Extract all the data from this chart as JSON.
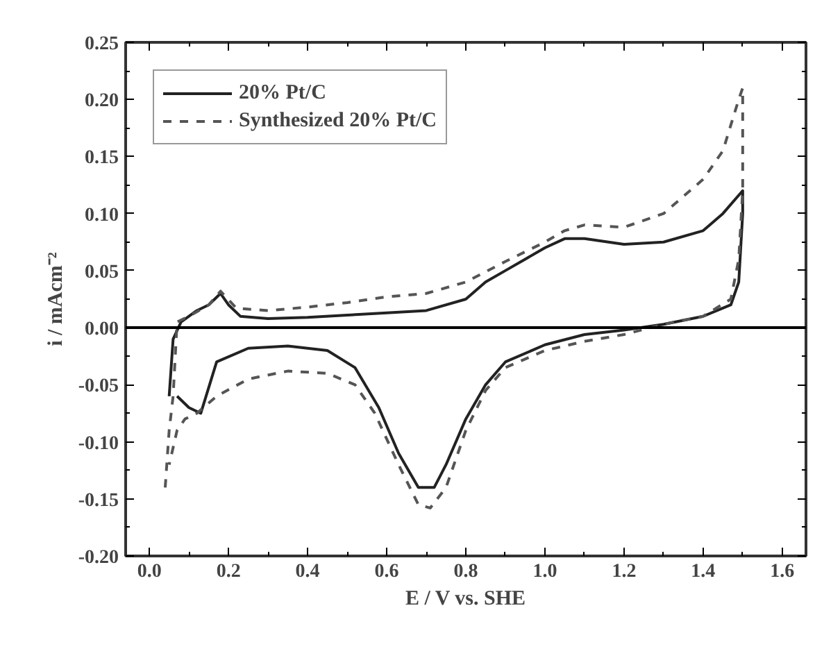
{
  "chart_data": {
    "type": "line",
    "xlabel": "E / V vs. SHE",
    "ylabel": "i / mAcm⁻²",
    "xlim": [
      -0.06,
      1.66
    ],
    "ylim": [
      -0.2,
      0.25
    ],
    "xticks": [
      {
        "value": 0,
        "label": "0.0"
      },
      {
        "value": 0.2,
        "label": "0.2"
      },
      {
        "value": 0.4,
        "label": "0.4"
      },
      {
        "value": 0.6,
        "label": "0.6"
      },
      {
        "value": 0.8,
        "label": "0.8"
      },
      {
        "value": 1.0,
        "label": "1.0"
      },
      {
        "value": 1.2,
        "label": "1.2"
      },
      {
        "value": 1.4,
        "label": "1.4"
      },
      {
        "value": 1.6,
        "label": "1.6"
      }
    ],
    "yticks": [
      {
        "value": -0.2,
        "label": "-0.20"
      },
      {
        "value": -0.15,
        "label": "-0.15"
      },
      {
        "value": -0.1,
        "label": "-0.10"
      },
      {
        "value": -0.05,
        "label": "-0.05"
      },
      {
        "value": 0,
        "label": "0.00"
      },
      {
        "value": 0.05,
        "label": "0.05"
      },
      {
        "value": 0.1,
        "label": "0.10"
      },
      {
        "value": 0.15,
        "label": "0.15"
      },
      {
        "value": 0.2,
        "label": "0.20"
      },
      {
        "value": 0.25,
        "label": "0.25"
      }
    ],
    "grid": false,
    "legend": "top left",
    "marker": "none",
    "ref_lines": [
      {
        "axis": "y",
        "value": 0,
        "color": "#000000",
        "line_style": "solid"
      }
    ],
    "series": [
      {
        "name": "20% Pt/C",
        "color": "#222222",
        "line_style": "solid",
        "x": [
          0.05,
          0.06,
          0.08,
          0.12,
          0.15,
          0.18,
          0.2,
          0.23,
          0.3,
          0.4,
          0.5,
          0.6,
          0.7,
          0.8,
          0.85,
          0.9,
          0.95,
          1.0,
          1.05,
          1.1,
          1.2,
          1.3,
          1.4,
          1.45,
          1.5,
          1.5,
          1.49,
          1.47,
          1.4,
          1.3,
          1.2,
          1.1,
          1.0,
          0.9,
          0.85,
          0.8,
          0.75,
          0.72,
          0.68,
          0.63,
          0.58,
          0.52,
          0.45,
          0.35,
          0.25,
          0.17,
          0.13,
          0.1,
          0.07
        ],
        "values": [
          -0.06,
          -0.01,
          0.005,
          0.015,
          0.02,
          0.03,
          0.02,
          0.01,
          0.008,
          0.009,
          0.011,
          0.013,
          0.015,
          0.025,
          0.04,
          0.05,
          0.06,
          0.07,
          0.078,
          0.078,
          0.073,
          0.075,
          0.085,
          0.1,
          0.12,
          0.1,
          0.04,
          0.02,
          0.01,
          0.003,
          -0.002,
          -0.006,
          -0.015,
          -0.03,
          -0.05,
          -0.08,
          -0.12,
          -0.14,
          -0.14,
          -0.11,
          -0.07,
          -0.035,
          -0.02,
          -0.016,
          -0.018,
          -0.03,
          -0.075,
          -0.07,
          -0.06
        ]
      },
      {
        "name": "Synthesized 20% Pt/C",
        "color": "#555555",
        "line_style": "dashed",
        "x": [
          0.04,
          0.05,
          0.06,
          0.07,
          0.1,
          0.15,
          0.18,
          0.22,
          0.3,
          0.4,
          0.5,
          0.6,
          0.7,
          0.8,
          0.9,
          1.0,
          1.05,
          1.1,
          1.2,
          1.3,
          1.4,
          1.45,
          1.49,
          1.5,
          1.5,
          1.49,
          1.47,
          1.4,
          1.3,
          1.2,
          1.1,
          1.0,
          0.9,
          0.85,
          0.8,
          0.75,
          0.71,
          0.68,
          0.63,
          0.57,
          0.52,
          0.45,
          0.35,
          0.25,
          0.17,
          0.12,
          0.09,
          0.07,
          0.05
        ],
        "values": [
          -0.14,
          -0.09,
          -0.06,
          0.005,
          0.01,
          0.02,
          0.032,
          0.017,
          0.015,
          0.018,
          0.022,
          0.027,
          0.03,
          0.04,
          0.058,
          0.075,
          0.085,
          0.09,
          0.088,
          0.1,
          0.13,
          0.155,
          0.2,
          0.21,
          0.12,
          0.06,
          0.025,
          0.01,
          0.003,
          -0.006,
          -0.012,
          -0.02,
          -0.035,
          -0.055,
          -0.09,
          -0.14,
          -0.158,
          -0.155,
          -0.12,
          -0.075,
          -0.05,
          -0.04,
          -0.038,
          -0.045,
          -0.06,
          -0.075,
          -0.08,
          -0.09,
          -0.12
        ]
      }
    ]
  }
}
